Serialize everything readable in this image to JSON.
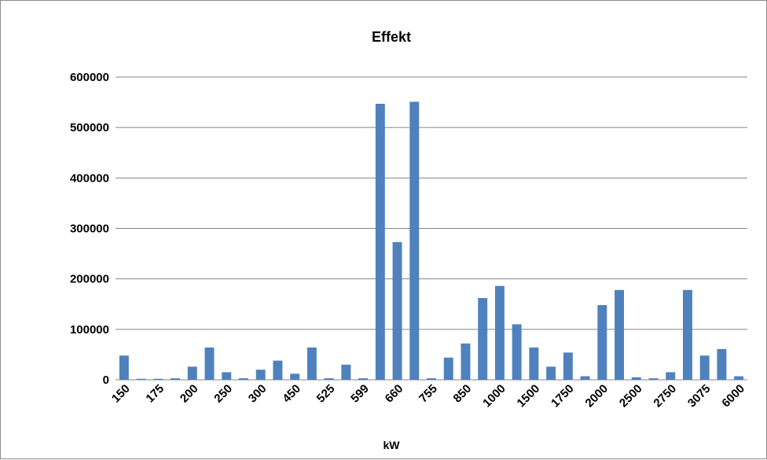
{
  "chart_data": {
    "type": "bar",
    "title": "Effekt",
    "xlabel": "kW",
    "ylabel": "",
    "ylim": [
      0,
      600000
    ],
    "yticks": [
      0,
      100000,
      200000,
      300000,
      400000,
      500000,
      600000
    ],
    "ytick_labels": [
      "0",
      "100000",
      "200000",
      "300000",
      "400000",
      "500000",
      "600000"
    ],
    "grid": true,
    "legend": "none",
    "bar_color": "#4f81bd",
    "xtick_labels": [
      "150",
      "175",
      "200",
      "250",
      "300",
      "450",
      "525",
      "599",
      "660",
      "755",
      "850",
      "1000",
      "1500",
      "1750",
      "2000",
      "2500",
      "2750",
      "3075",
      "6000"
    ],
    "values": [
      48000,
      2000,
      2000,
      3000,
      26000,
      64000,
      15000,
      3000,
      20000,
      38000,
      12000,
      64000,
      3000,
      30000,
      3000,
      547000,
      273000,
      551000,
      3000,
      44000,
      72000,
      162000,
      186000,
      110000,
      64000,
      26000,
      54000,
      7000,
      148000,
      178000,
      5000,
      3000,
      15000,
      178000,
      48000,
      61000,
      7000
    ]
  }
}
